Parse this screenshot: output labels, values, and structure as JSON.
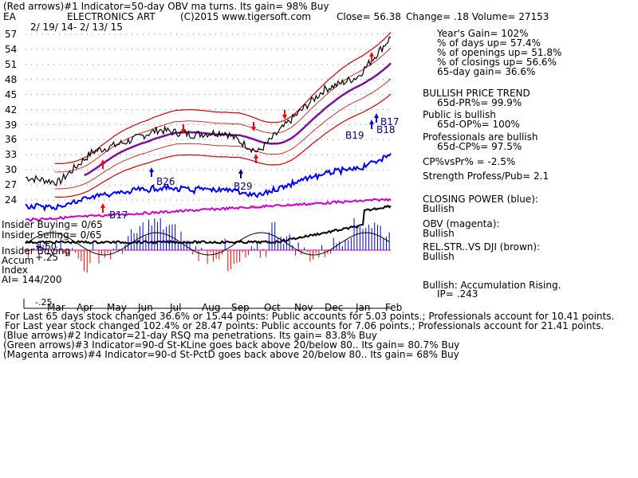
{
  "header": {
    "line1": "(Red arrows)#1 Indicator=50-day OBV ma turns.  Its gain= 98% Buy",
    "ticker": "EA",
    "company": "ELECTRONICS ART",
    "copyright": "(C)2015 www.tigersoft.com",
    "close": "Close=  56.38",
    "change": "Change= .18 Volume= 27153",
    "date_range": "2/ 19/ 14-  2/ 13/ 15"
  },
  "y_axis_labels": [
    "57",
    "54",
    "51",
    "48",
    "45",
    "42",
    "39",
    "36",
    "33",
    "30",
    "27",
    "24"
  ],
  "x_axis_labels": [
    "Mar",
    "Apr",
    "May",
    "Jun",
    "Jul",
    "Aug",
    "Sep",
    "Oct",
    "Nov",
    "Dec",
    "Jan",
    "Feb"
  ],
  "chart_annotations": {
    "b26": "B26",
    "b29": "B29",
    "b17_low": "B17",
    "b19": "B19",
    "b17_hi": "B17",
    "b18": "B18"
  },
  "left_labels": {
    "insider_buying_1": "Insider Buying= 0/65",
    "insider_selling": "Insider Selling= 0/65",
    "insider_buying_2": "Insider Buying",
    "accum": "Accum",
    "plus25": "+.25",
    "plus50": "+.50",
    "index": "Index",
    "ai": "AI= 144/200",
    "minus25": "-.25"
  },
  "stats": {
    "years_gain": "Year's Gain= 102%",
    "days_up": "% of days up= 57.4%",
    "openings_up": "% of openings up= 51.8%",
    "closings_up": "% of closings up= 56.6%",
    "gain_65": "65-day gain= 36.6%",
    "bullish_trend": "BULLISH PRICE TREND",
    "pr_pct": "65d-PR%= 99.9%",
    "public_bullish": "Public is bullish",
    "op_pct": "65d-OP%= 100%",
    "pros_bullish": "Professionals are bullish",
    "cp_pct": "65d-CP%= 97.5%",
    "cpvspr": "CP%vsPr% = -2.5%",
    "strength": "Strength Profess/Pub= 2.1",
    "closing_power": "CLOSING POWER (blue):",
    "closing_power_val": "Bullish",
    "obv": "OBV (magenta):",
    "obv_val": "Bullish",
    "relstr": "REL.STR..VS DJI (brown):",
    "relstr_val": "Bullish",
    "accum_rising": "Bullish: Accumulation Rising.",
    "ip": "IP=  .243"
  },
  "footer": {
    "l1": "For Last 65 days stock changed  36.6% or  15.44 points:  Public accounts for  5.03 points.;  Professionals account for  10.41 points.",
    "l2": "For Last year stock changed  102.4% or  28.47 points:  Public accounts for  7.06 points.;  Professionals account for  21.41 points.",
    "l3": "(Blue arrows)#2 Indicator=21-day RSQ ma penetrations. Its gain= 83.8% Buy",
    "l4": "(Green arrows)#3 Indicator=90-d St-KLine goes back above 20/below 80.. Its gain= 80.7% Buy",
    "l5": "(Magenta arrows)#4 Indicator=90-d St-PctD goes back above 20/below 80.. Its gain= 68% Buy"
  },
  "colors": {
    "price": "#000000",
    "ma": "#7a0fa0",
    "bands": "#cc0000",
    "closing_power": "#0000ff",
    "obv": "#cc00cc",
    "relstr": "#000000",
    "accum_pos": "#0000cc",
    "accum_neg": "#ff0000",
    "text_navy": "#000080"
  },
  "chart_data": {
    "type": "line",
    "title": "ELECTRONICS ART",
    "x": [
      "Mar",
      "Apr",
      "May",
      "Jun",
      "Jul",
      "Aug",
      "Sep",
      "Oct",
      "Nov",
      "Dec",
      "Jan",
      "Feb"
    ],
    "ylim": [
      24,
      57
    ],
    "series": [
      {
        "values": [
          28.5,
          27.5,
          33.5,
          35.5,
          38.0,
          37.0,
          37.5,
          33.5,
          40.0,
          46.0,
          48.5,
          56.4
        ]
      }
    ]
  }
}
